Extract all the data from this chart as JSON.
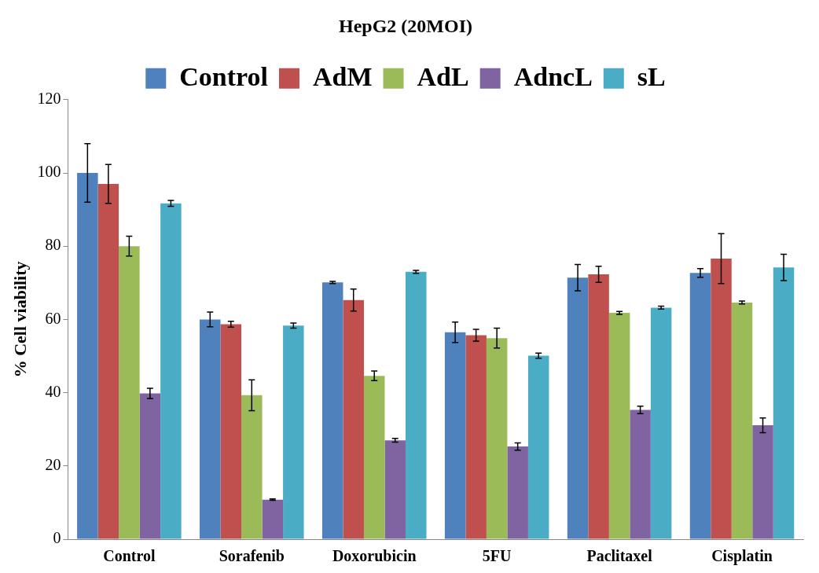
{
  "chart_data": {
    "type": "bar",
    "title": "HepG2 (20MOI)",
    "ylabel": "% Cell viability",
    "categories": [
      "Control",
      "Sorafenib",
      "Doxorubicin",
      "5FU",
      "Paclitaxel",
      "Cisplatin"
    ],
    "series": [
      {
        "name": "Control",
        "color": "#4f81bd",
        "values": [
          100,
          60,
          70.1,
          56.5,
          71.4,
          72.7
        ],
        "errors": [
          8,
          2,
          0.3,
          2.8,
          3.6,
          1.2
        ]
      },
      {
        "name": "AdM",
        "color": "#c0504d",
        "values": [
          97,
          58.7,
          65.3,
          55.7,
          72.3,
          76.6
        ],
        "errors": [
          5.3,
          0.8,
          3,
          1.6,
          2.2,
          6.8
        ]
      },
      {
        "name": "AdL",
        "color": "#9bbb59",
        "values": [
          80,
          39.3,
          44.6,
          54.9,
          61.8,
          64.6
        ],
        "errors": [
          2.7,
          4.2,
          1.3,
          2.7,
          0.4,
          0.4
        ]
      },
      {
        "name": "AdncL",
        "color": "#8064a2",
        "values": [
          39.8,
          10.8,
          27,
          25.3,
          35.3,
          31.1
        ],
        "errors": [
          1.4,
          0.2,
          0.5,
          1,
          1,
          2
        ]
      },
      {
        "name": "sL",
        "color": "#4bacc6",
        "values": [
          91.7,
          58.3,
          73,
          50.1,
          63.2,
          74.2
        ],
        "errors": [
          0.8,
          0.7,
          0.4,
          0.7,
          0.4,
          3.6
        ]
      }
    ],
    "ylim": [
      0,
      120
    ],
    "yticks": [
      0,
      20,
      40,
      60,
      80,
      100,
      120
    ],
    "grid": false,
    "legend": "top"
  }
}
